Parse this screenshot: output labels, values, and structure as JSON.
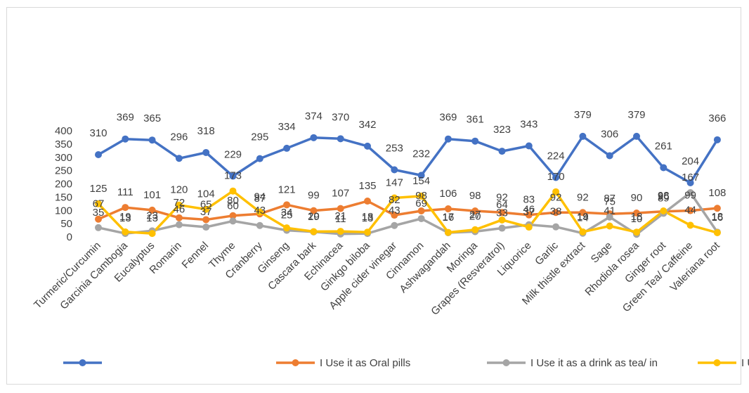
{
  "chart_data": {
    "type": "line",
    "title": "",
    "xlabel": "",
    "ylabel": "",
    "ylim": [
      0,
      400
    ],
    "yticks": [
      "0",
      "50",
      "100",
      "150",
      "200",
      "250",
      "300",
      "350",
      "400"
    ],
    "grid": false,
    "legend_position": "bottom",
    "categories": [
      "Turmeric/Curcumin",
      "Garcinia Cambogia",
      "Eucalyptus",
      "Romarin",
      "Fennel",
      "Thyme",
      "Cranberry",
      "Ginseng",
      "Cascara bark",
      "Echinacea",
      "Ginkgo biloba",
      "Apple cider vinegar",
      "Cinnamon",
      "Ashwagandah",
      "Moringa",
      "Grapes (Resveratrol)",
      "Liquorice",
      "Garlic",
      "Milk thistle extract",
      "Sage",
      "Rhodiola rosea",
      "Ginger root",
      "Green Tea/ Caffeine",
      "Valeriana root"
    ],
    "series": [
      {
        "name": "",
        "color": "#4472C4",
        "values": [
          310,
          369,
          365,
          296,
          318,
          229,
          295,
          334,
          374,
          370,
          342,
          253,
          232,
          369,
          361,
          323,
          343,
          224,
          379,
          306,
          379,
          261,
          204,
          366
        ]
      },
      {
        "name": "I Use it as Oral pills",
        "color": "#ED7D31",
        "values": [
          67,
          111,
          101,
          72,
          65,
          80,
          87,
          121,
          99,
          107,
          135,
          82,
          98,
          106,
          98,
          92,
          83,
          92,
          92,
          87,
          90,
          96,
          99,
          108
        ]
      },
      {
        "name": "I Use it as  a drink as tea/ in",
        "color": "#A5A5A5",
        "values": [
          35,
          13,
          23,
          46,
          37,
          60,
          43,
          25,
          19,
          11,
          13,
          43,
          69,
          16,
          20,
          33,
          46,
          38,
          14,
          75,
          10,
          89,
          167,
          18
        ]
      },
      {
        "name": "I Use it as  food ingredient (i",
        "color": "#FFC000",
        "values": [
          125,
          19,
          13,
          120,
          104,
          173,
          94,
          34,
          20,
          21,
          18,
          147,
          154,
          17,
          27,
          64,
          37,
          170,
          19,
          41,
          18,
          98,
          44,
          16
        ]
      }
    ]
  }
}
